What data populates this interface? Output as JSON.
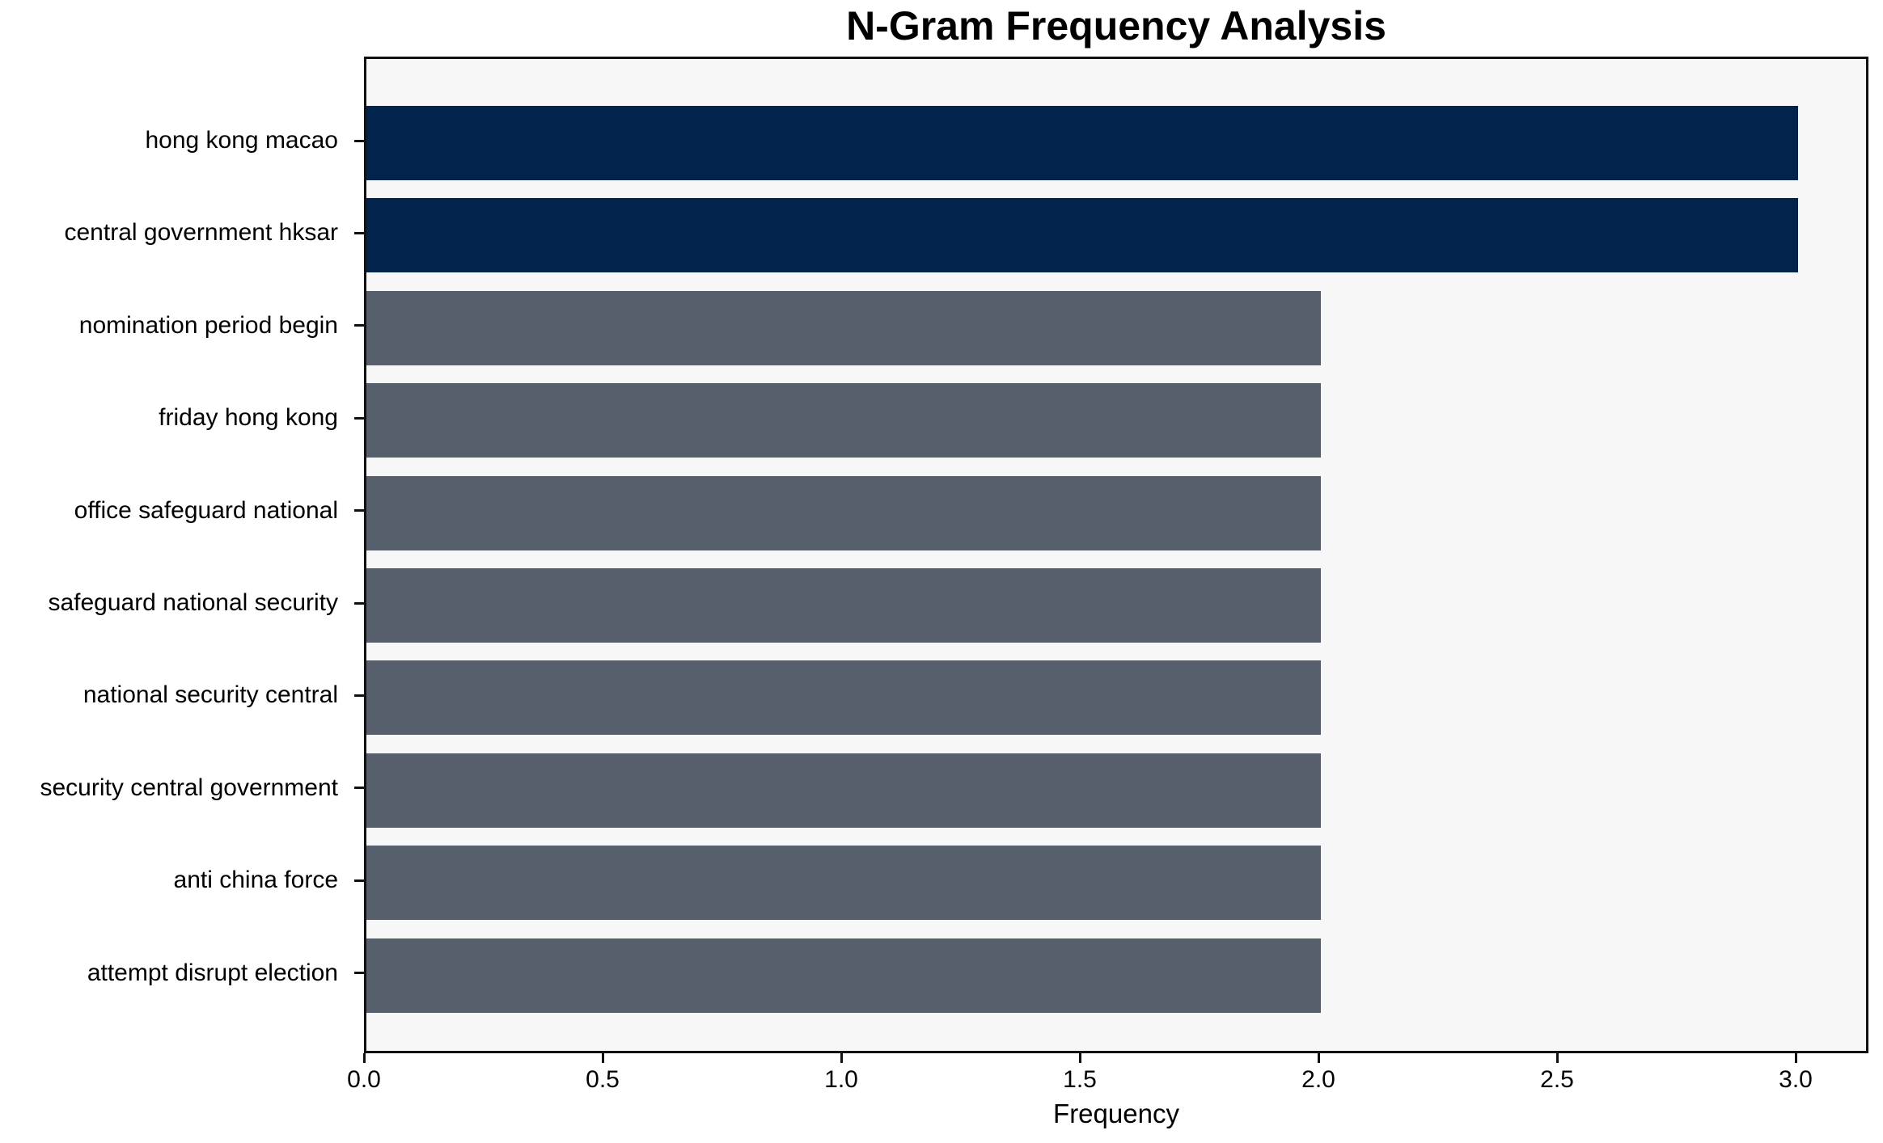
{
  "chart_data": {
    "type": "bar",
    "orientation": "horizontal",
    "title": "N-Gram Frequency Analysis",
    "xlabel": "Frequency",
    "ylabel": "",
    "categories": [
      "hong kong macao",
      "central government hksar",
      "nomination period begin",
      "friday hong kong",
      "office safeguard national",
      "safeguard national security",
      "national security central",
      "security central government",
      "anti china force",
      "attempt disrupt election"
    ],
    "values": [
      3,
      3,
      2,
      2,
      2,
      2,
      2,
      2,
      2,
      2
    ],
    "bar_colors": [
      "#01234C",
      "#01234C",
      "#575E6C",
      "#575E6C",
      "#575E6C",
      "#575E6C",
      "#575E6C",
      "#575E6C",
      "#575E6C",
      "#575E6C"
    ],
    "xticks": [
      0.0,
      0.5,
      1.0,
      1.5,
      2.0,
      2.5,
      3.0
    ],
    "xtick_labels": [
      "0.0",
      "0.5",
      "1.0",
      "1.5",
      "2.0",
      "2.5",
      "3.0"
    ],
    "xlim": [
      0,
      3.15
    ],
    "grid": false,
    "legend_position": "none",
    "colors": {
      "highlight": "#01234C",
      "default": "#575E6C",
      "plot_background": "#F7F7F8",
      "figure_background": "#FFFFFF",
      "spine": "#111111",
      "text": "#000000"
    }
  }
}
